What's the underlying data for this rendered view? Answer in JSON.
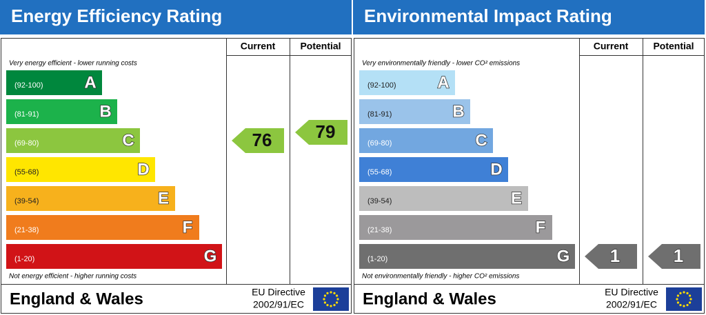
{
  "panels": [
    {
      "title": "Energy Efficiency Rating",
      "columns": [
        "Current",
        "Potential"
      ],
      "top_note": "Very energy efficient - lower running costs",
      "bottom_note": "Not energy efficient - higher running costs",
      "bands": [
        {
          "range": "(92-100)",
          "letter": "A",
          "color": "#00873d",
          "label_color": "#ffffff"
        },
        {
          "range": "(81-91)",
          "letter": "B",
          "color": "#1cb24b",
          "label_color": "#ffffff"
        },
        {
          "range": "(69-80)",
          "letter": "C",
          "color": "#8cc63f",
          "label_color": "#ffffff"
        },
        {
          "range": "(55-68)",
          "letter": "D",
          "color": "#ffe600",
          "label_color": "#222222"
        },
        {
          "range": "(39-54)",
          "letter": "E",
          "color": "#f7b11c",
          "label_color": "#222222"
        },
        {
          "range": "(21-38)",
          "letter": "F",
          "color": "#f07c1d",
          "label_color": "#ffffff"
        },
        {
          "range": "(1-20)",
          "letter": "G",
          "color": "#d11317",
          "label_color": "#ffffff"
        }
      ],
      "current": 76,
      "potential": 79,
      "rating_text_color": "#111111",
      "footer": {
        "region": "England & Wales",
        "directive": "EU Directive",
        "code": "2002/91/EC"
      }
    },
    {
      "title": "Environmental Impact Rating",
      "columns": [
        "Current",
        "Potential"
      ],
      "top_note": "Very environmentally friendly - lower CO² emissions",
      "bottom_note": "Not environmentally friendly - higher CO² emissions",
      "bands": [
        {
          "range": "(92-100)",
          "letter": "A",
          "color": "#b4e0f6",
          "label_color": "#222222"
        },
        {
          "range": "(81-91)",
          "letter": "B",
          "color": "#9ac3ea",
          "label_color": "#222222"
        },
        {
          "range": "(69-80)",
          "letter": "C",
          "color": "#72a7e0",
          "label_color": "#ffffff"
        },
        {
          "range": "(55-68)",
          "letter": "D",
          "color": "#3f80d6",
          "label_color": "#ffffff"
        },
        {
          "range": "(39-54)",
          "letter": "E",
          "color": "#bdbdbd",
          "label_color": "#222222"
        },
        {
          "range": "(21-38)",
          "letter": "F",
          "color": "#9b999b",
          "label_color": "#ffffff"
        },
        {
          "range": "(1-20)",
          "letter": "G",
          "color": "#6f6f6f",
          "label_color": "#ffffff"
        }
      ],
      "current": 1,
      "potential": 1,
      "rating_text_color": "#ffffff",
      "footer": {
        "region": "England & Wales",
        "directive": "EU Directive",
        "code": "2002/91/EC"
      }
    }
  ]
}
